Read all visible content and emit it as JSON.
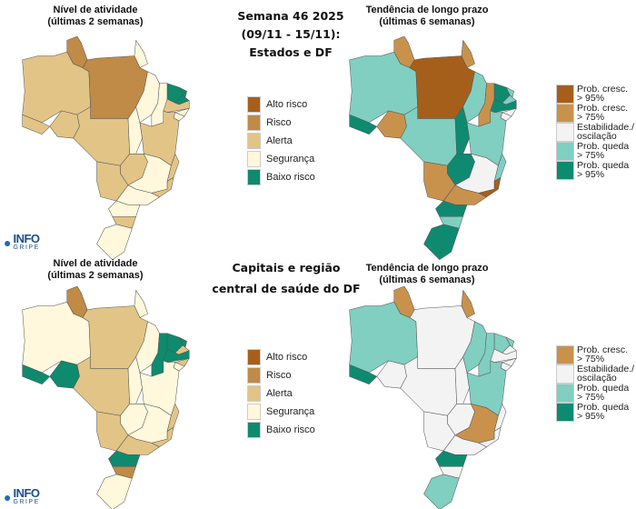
{
  "header": {
    "center_title_top": [
      "Semana 46 2025",
      "(09/11 - 15/11):",
      "Estados e DF"
    ],
    "center_title_bottom": [
      "Capitais e região",
      "central de saúde do DF"
    ]
  },
  "titles": {
    "activity": [
      "Nível de atividade",
      "(últimas 2 semanas)"
    ],
    "trend": [
      "Tendência de longo prazo",
      "(últimas 6 semanas)"
    ]
  },
  "logo": {
    "text": "INFO",
    "sub": "GRIPE"
  },
  "colors": {
    "alto": "#a65f1b",
    "risco": "#c08a47",
    "alerta": "#e2c487",
    "seguranca": "#fff8dc",
    "baixo": "#0e8a6e",
    "cresc95": "#a65f1b",
    "cresc75": "#c8924d",
    "estab": "#f3f3f3",
    "queda75": "#80cfc1",
    "queda95": "#0e8a70"
  },
  "activity_legend": [
    {
      "key": "alto",
      "label": "Alto risco"
    },
    {
      "key": "risco",
      "label": "Risco"
    },
    {
      "key": "alerta",
      "label": "Alerta"
    },
    {
      "key": "seguranca",
      "label": "Segurança"
    },
    {
      "key": "baixo",
      "label": "Baixo risco"
    }
  ],
  "trend_legend_top": [
    {
      "key": "cresc95",
      "l1": "Prob. cresc.",
      "l2": "> 95%"
    },
    {
      "key": "cresc75",
      "l1": "Prob. cresc.",
      "l2": "> 75%"
    },
    {
      "key": "estab",
      "l1": "Estabilidade./",
      "l2": "oscilação"
    },
    {
      "key": "queda75",
      "l1": "Prob. queda",
      "l2": "> 75%"
    },
    {
      "key": "queda95",
      "l1": "Prob. queda",
      "l2": "> 95%"
    }
  ],
  "trend_legend_bottom": [
    {
      "key": "cresc75",
      "l1": "Prob. cresc.",
      "l2": "> 75%"
    },
    {
      "key": "estab",
      "l1": "Estabilidade./",
      "l2": "oscilação"
    },
    {
      "key": "queda75",
      "l1": "Prob. queda",
      "l2": "> 75%"
    },
    {
      "key": "queda95",
      "l1": "Prob. queda",
      "l2": "> 95%"
    }
  ],
  "maps": {
    "states_activity": {
      "RR": "risco",
      "AP": "seguranca",
      "AM": "alerta",
      "PA": "risco",
      "AC": "alerta",
      "RO": "alerta",
      "MT": "alerta",
      "MA": "seguranca",
      "TO": "seguranca",
      "PI": "seguranca",
      "CE": "baixo",
      "RN": "baixo",
      "PB": "baixo",
      "PE": "alerta",
      "AL": "seguranca",
      "SE": "seguranca",
      "BA": "alerta",
      "GO": "alerta",
      "MG": "seguranca",
      "ES": "alerta",
      "RJ": "alerta",
      "MS": "alerta",
      "SP": "seguranca",
      "PR": "seguranca",
      "SC": "alerta",
      "RS": "seguranca"
    },
    "states_trend": {
      "RR": "cresc75",
      "AP": "cresc75",
      "AM": "queda75",
      "PA": "cresc95",
      "AC": "queda95",
      "RO": "cresc75",
      "MT": "queda75",
      "MA": "queda75",
      "TO": "queda95",
      "PI": "cresc75",
      "CE": "queda95",
      "RN": "queda75",
      "PB": "queda75",
      "PE": "queda95",
      "AL": "estab",
      "SE": "estab",
      "BA": "queda75",
      "GO": "queda95",
      "MG": "estab",
      "ES": "queda75",
      "RJ": "cresc95",
      "MS": "cresc75",
      "SP": "cresc75",
      "PR": "queda95",
      "SC": "queda75",
      "RS": "queda95"
    },
    "capitals_activity": {
      "RR": "risco",
      "AP": "seguranca",
      "AM": "seguranca",
      "PA": "alerta",
      "AC": "baixo",
      "RO": "baixo",
      "MT": "alerta",
      "MA": "seguranca",
      "TO": "seguranca",
      "PI": "baixo",
      "CE": "baixo",
      "RN": "baixo",
      "PB": "alerta",
      "PE": "baixo",
      "AL": "alerta",
      "SE": "seguranca",
      "BA": "seguranca",
      "GO": "seguranca",
      "MG": "seguranca",
      "ES": "alerta",
      "RJ": "alerta",
      "MS": "alerta",
      "SP": "alerta",
      "PR": "baixo",
      "SC": "risco",
      "RS": "seguranca"
    },
    "capitals_trend": {
      "RR": "cresc75",
      "AP": "cresc75",
      "AM": "queda75",
      "PA": "estab",
      "AC": "queda95",
      "RO": "estab",
      "MT": "estab",
      "MA": "queda75",
      "TO": "estab",
      "PI": "queda75",
      "CE": "queda75",
      "RN": "queda75",
      "PB": "estab",
      "PE": "estab",
      "AL": "estab",
      "SE": "estab",
      "BA": "queda75",
      "GO": "estab",
      "MG": "cresc75",
      "ES": "estab",
      "RJ": "estab",
      "MS": "estab",
      "SP": "estab",
      "PR": "queda95",
      "SC": "estab",
      "RS": "queda75"
    }
  }
}
